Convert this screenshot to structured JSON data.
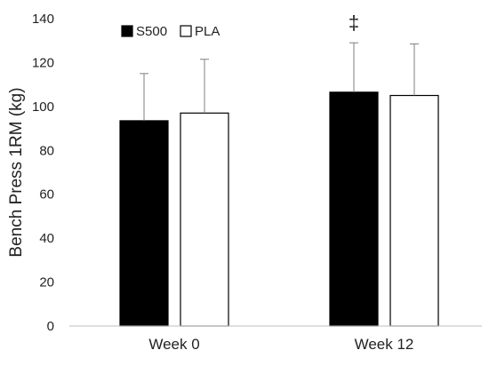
{
  "chart_data": {
    "type": "bar",
    "categories": [
      "Week 0",
      "Week 12"
    ],
    "series": [
      {
        "name": "S500",
        "values": [
          93.5,
          106.5
        ],
        "errors": [
          21.5,
          22.5
        ],
        "color": "#000000"
      },
      {
        "name": "PLA",
        "values": [
          97.0,
          105.0
        ],
        "errors": [
          24.5,
          23.5
        ],
        "color": "#ffffff"
      }
    ],
    "ylabel": "Bench Press 1RM (kg)",
    "xlabel": "",
    "ylim": [
      0,
      140
    ],
    "yticks": [
      0,
      20,
      40,
      60,
      80,
      100,
      120,
      140
    ],
    "grid": false,
    "legend": "top-left",
    "annotations": [
      {
        "text": "‡",
        "category": "Week 12",
        "series": "S500"
      }
    ]
  }
}
